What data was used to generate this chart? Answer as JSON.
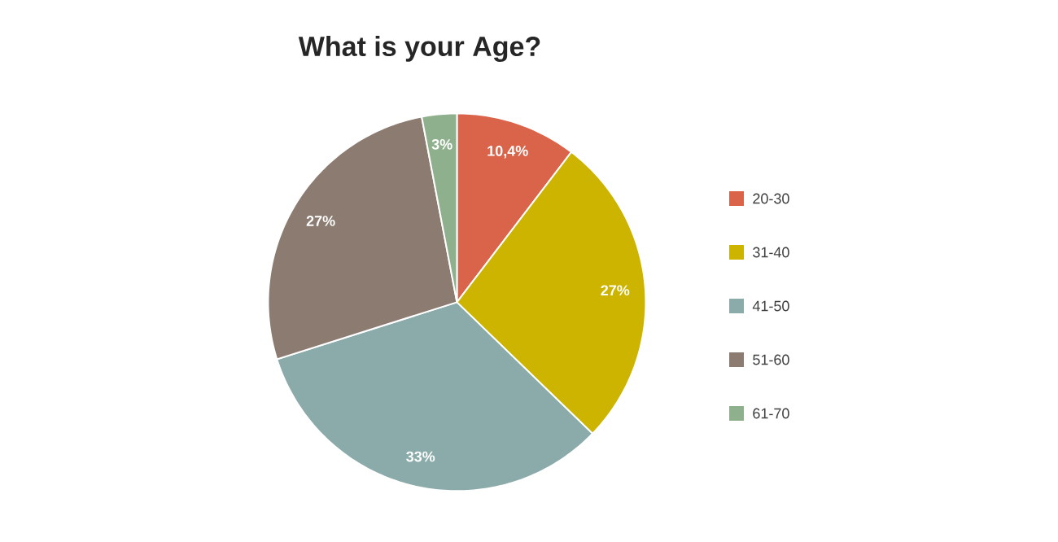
{
  "chart_data": {
    "type": "pie",
    "title": "What is your Age?",
    "categories": [
      "20-30",
      "31-40",
      "41-50",
      "51-60",
      "61-70"
    ],
    "values": [
      10.4,
      27,
      33,
      27,
      3
    ],
    "colors": [
      "#d9644a",
      "#ccb400",
      "#8aabaa",
      "#8c7b70",
      "#8fb08c"
    ],
    "value_labels": [
      "10,4%",
      "27%",
      "33%",
      "27%",
      "3%"
    ],
    "legend": "right"
  }
}
